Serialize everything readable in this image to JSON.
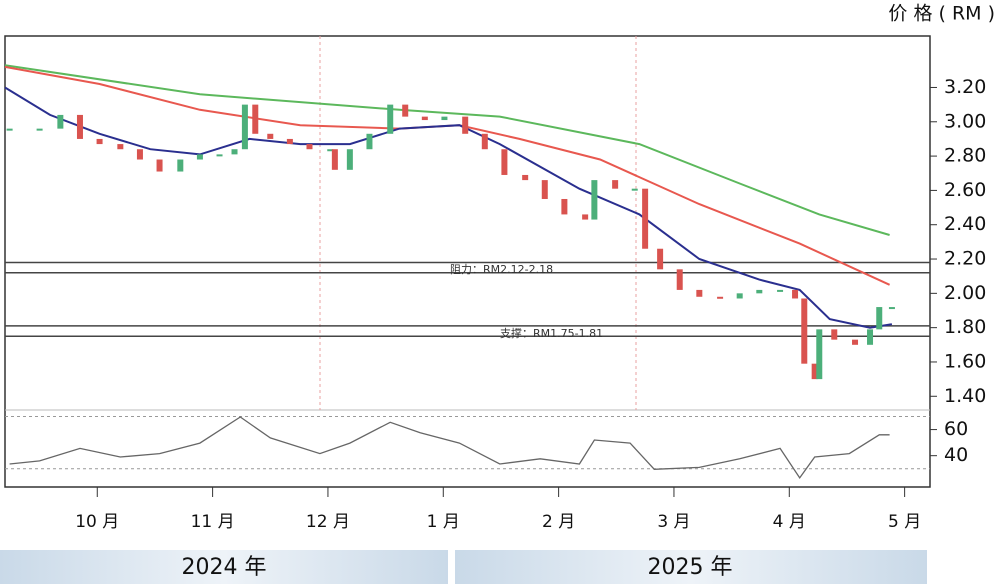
{
  "chart_data": {
    "type": "candlestick",
    "unit_label": "价 格 ( RM )",
    "xlim": [
      9.2,
      17.22
    ],
    "xticks": [
      {
        "value": 10,
        "label": "10 月"
      },
      {
        "value": 11,
        "label": "11 月"
      },
      {
        "value": 12,
        "label": "12 月"
      },
      {
        "value": 13,
        "label": "1 月"
      },
      {
        "value": 14,
        "label": "2 月"
      },
      {
        "value": 15,
        "label": "3 月"
      },
      {
        "value": 16,
        "label": "4 月"
      },
      {
        "value": 17,
        "label": "5 月"
      }
    ],
    "years": [
      "2024 年",
      "2025 年"
    ],
    "ylim": [
      1.32,
      3.5
    ],
    "yticks": [
      {
        "value": 1.4,
        "label": "1.40"
      },
      {
        "value": 1.6,
        "label": "1.60"
      },
      {
        "value": 1.8,
        "label": "1.80"
      },
      {
        "value": 2,
        "label": "2.00"
      },
      {
        "value": 2.2,
        "label": "2.20"
      },
      {
        "value": 2.4,
        "label": "2.40"
      },
      {
        "value": 2.6,
        "label": "2.60"
      },
      {
        "value": 2.8,
        "label": "2.80"
      },
      {
        "value": 3,
        "label": "3.00"
      },
      {
        "value": 3.2,
        "label": "3.20"
      }
    ],
    "up_color": "#4caf7a",
    "down_color": "#d9534f",
    "price": {
      "x": [
        9.24,
        9.5,
        9.68,
        9.85,
        10.02,
        10.2,
        10.37,
        10.54,
        10.72,
        10.89,
        11.06,
        11.19,
        11.28,
        11.37,
        11.5,
        11.67,
        11.84,
        12.02,
        12.06,
        12.19,
        12.36,
        12.54,
        12.67,
        12.84,
        13.01,
        13.19,
        13.36,
        13.53,
        13.71,
        13.88,
        14.05,
        14.23,
        14.31,
        14.49,
        14.66,
        14.75,
        14.88,
        15.05,
        15.22,
        15.4,
        15.57,
        15.74,
        15.92,
        16.05,
        16.13,
        16.22,
        16.26,
        16.39,
        16.57,
        16.7,
        16.78,
        16.89
      ],
      "values": [
        2.96,
        2.96,
        3.04,
        2.9,
        2.87,
        2.84,
        2.78,
        2.71,
        2.78,
        2.81,
        2.81,
        2.84,
        3.1,
        2.93,
        2.9,
        2.87,
        2.84,
        2.84,
        2.72,
        2.84,
        2.93,
        3.1,
        3.03,
        3.01,
        3.03,
        2.93,
        2.84,
        2.69,
        2.66,
        2.55,
        2.46,
        2.43,
        2.66,
        2.61,
        2.61,
        2.26,
        2.14,
        2.02,
        1.98,
        1.97,
        2.0,
        2.02,
        2.02,
        1.97,
        1.59,
        1.5,
        1.79,
        1.73,
        1.7,
        1.79,
        1.92,
        1.92
      ]
    },
    "series": [
      {
        "color": "#5cb85c",
        "x": [
          9.2,
          10.89,
          12.62,
          13.49,
          14.7,
          15.57,
          16.26,
          16.87
        ],
        "values": [
          3.33,
          3.16,
          3.07,
          3.03,
          2.87,
          2.64,
          2.46,
          2.34
        ]
      },
      {
        "color": "#e8584f",
        "x": [
          9.2,
          10.02,
          10.89,
          11.76,
          12.62,
          13.14,
          13.66,
          14.36,
          15.22,
          16.09,
          16.87
        ],
        "values": [
          3.32,
          3.22,
          3.07,
          2.98,
          2.96,
          2.98,
          2.9,
          2.78,
          2.52,
          2.29,
          2.05
        ]
      },
      {
        "color": "#2a2f8f",
        "x": [
          9.2,
          9.59,
          10.02,
          10.46,
          10.89,
          11.32,
          11.76,
          12.19,
          12.62,
          13.14,
          13.49,
          14.18,
          14.7,
          15.22,
          15.74,
          16.09,
          16.35,
          16.7,
          16.89
        ],
        "values": [
          3.2,
          3.04,
          2.93,
          2.84,
          2.81,
          2.9,
          2.87,
          2.87,
          2.96,
          2.98,
          2.87,
          2.61,
          2.46,
          2.2,
          2.08,
          2.02,
          1.85,
          1.8,
          1.82
        ]
      }
    ],
    "levels": [
      1.75,
      1.81,
      2.12,
      2.18
    ],
    "annotations": [
      "阻力：RM2.12-2.18",
      "支撑：RM1.75-1.81"
    ],
    "rsi": {
      "color": "#666",
      "x": [
        9.24,
        9.5,
        9.85,
        10.2,
        10.54,
        10.89,
        11.24,
        11.5,
        11.93,
        12.19,
        12.54,
        12.8,
        13.14,
        13.49,
        13.84,
        14.18,
        14.31,
        14.62,
        14.83,
        15.22,
        15.57,
        15.92,
        16.09,
        16.22,
        16.52,
        16.78,
        16.87
      ],
      "values": [
        33.6,
        36,
        45.6,
        39,
        41.6,
        49.6,
        69.6,
        53.6,
        41.6,
        49.6,
        65.6,
        57.6,
        49.6,
        33.6,
        37.6,
        33.6,
        52,
        49.6,
        29.6,
        31,
        37.6,
        45.6,
        23,
        39,
        41.6,
        56,
        56
      ],
      "ylim": [
        16,
        75
      ],
      "yticks": [
        40,
        60
      ],
      "ref_lines": [
        30,
        70
      ]
    }
  }
}
